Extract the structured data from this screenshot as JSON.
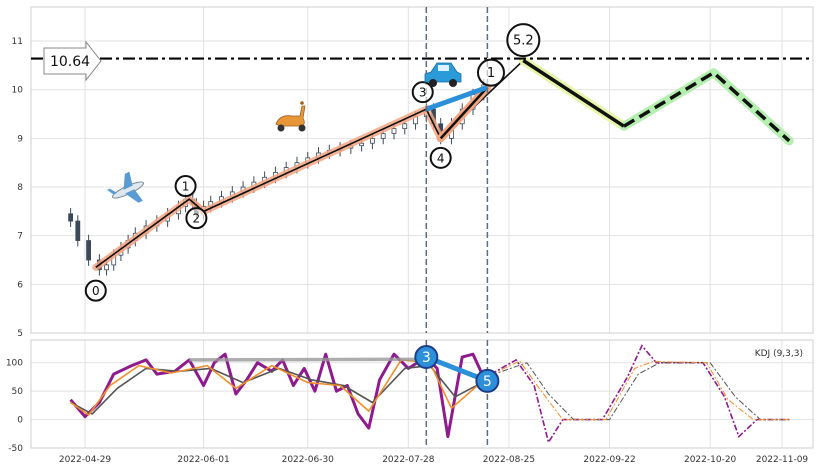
{
  "chart_data": {
    "type": "candlestick",
    "title": "",
    "price_panel": {
      "ylim": [
        5,
        11.7
      ],
      "yticks": [
        "5",
        "6",
        "7",
        "8",
        "9",
        "10",
        "11"
      ],
      "current_price_label": "10.64",
      "current_price_line": 10.64,
      "vlines": [
        "2022-08-02",
        "2022-08-19"
      ],
      "wave_labels": [
        "0",
        "1",
        "2",
        "3",
        "4",
        "1",
        "5.2"
      ],
      "emoji_markers": [
        "airplane",
        "scooter",
        "car"
      ],
      "close_series": [
        {
          "date": "2022-04-25",
          "value": 7.3
        },
        {
          "date": "2022-04-27",
          "value": 6.9
        },
        {
          "date": "2022-04-30",
          "value": 6.5
        },
        {
          "date": "2022-05-03",
          "value": 6.3
        },
        {
          "date": "2022-05-05",
          "value": 6.4
        },
        {
          "date": "2022-05-07",
          "value": 6.6
        },
        {
          "date": "2022-05-09",
          "value": 6.75
        },
        {
          "date": "2022-05-11",
          "value": 6.9
        },
        {
          "date": "2022-05-13",
          "value": 7.05
        },
        {
          "date": "2022-05-16",
          "value": 7.2
        },
        {
          "date": "2022-05-19",
          "value": 7.3
        },
        {
          "date": "2022-05-22",
          "value": 7.45
        },
        {
          "date": "2022-05-25",
          "value": 7.6
        },
        {
          "date": "2022-05-27",
          "value": 7.75
        },
        {
          "date": "2022-05-29",
          "value": 7.65
        },
        {
          "date": "2022-05-30",
          "value": 7.45
        },
        {
          "date": "2022-06-01",
          "value": 7.6
        },
        {
          "date": "2022-06-03",
          "value": 7.7
        },
        {
          "date": "2022-06-06",
          "value": 7.8
        },
        {
          "date": "2022-06-09",
          "value": 7.9
        },
        {
          "date": "2022-06-12",
          "value": 8.0
        },
        {
          "date": "2022-06-15",
          "value": 8.1
        },
        {
          "date": "2022-06-18",
          "value": 8.2
        },
        {
          "date": "2022-06-21",
          "value": 8.3
        },
        {
          "date": "2022-06-24",
          "value": 8.4
        },
        {
          "date": "2022-06-27",
          "value": 8.5
        },
        {
          "date": "2022-06-30",
          "value": 8.6
        },
        {
          "date": "2022-07-03",
          "value": 8.7
        },
        {
          "date": "2022-07-06",
          "value": 8.75
        },
        {
          "date": "2022-07-09",
          "value": 8.8
        },
        {
          "date": "2022-07-12",
          "value": 8.85
        },
        {
          "date": "2022-07-15",
          "value": 8.9
        },
        {
          "date": "2022-07-18",
          "value": 9.0
        },
        {
          "date": "2022-07-21",
          "value": 9.1
        },
        {
          "date": "2022-07-24",
          "value": 9.2
        },
        {
          "date": "2022-07-27",
          "value": 9.3
        },
        {
          "date": "2022-07-30",
          "value": 9.45
        },
        {
          "date": "2022-08-02",
          "value": 9.6
        },
        {
          "date": "2022-08-04",
          "value": 9.3
        },
        {
          "date": "2022-08-06",
          "value": 9.0
        },
        {
          "date": "2022-08-09",
          "value": 9.3
        },
        {
          "date": "2022-08-12",
          "value": 9.6
        },
        {
          "date": "2022-08-15",
          "value": 9.9
        },
        {
          "date": "2022-08-18",
          "value": 10.1
        }
      ],
      "wave_segments": [
        {
          "name": "primary",
          "points": [
            {
              "date": "2022-05-02",
              "value": 6.35
            },
            {
              "date": "2022-05-28",
              "value": 7.75
            },
            {
              "date": "2022-06-01",
              "value": 7.5
            },
            {
              "date": "2022-08-02",
              "value": 9.6
            },
            {
              "date": "2022-08-06",
              "value": 9.0
            },
            {
              "date": "2022-08-29",
              "value": 10.6
            }
          ]
        },
        {
          "name": "sub-wave",
          "points": [
            {
              "date": "2022-08-06",
              "value": 9.0
            },
            {
              "date": "2022-08-19",
              "value": 10.05
            }
          ]
        },
        {
          "name": "connector",
          "points": [
            {
              "date": "2022-08-02",
              "value": 9.6
            },
            {
              "date": "2022-08-19",
              "value": 10.05
            }
          ]
        }
      ],
      "projection": [
        {
          "date": "2022-08-29",
          "value": 10.6
        },
        {
          "date": "2022-09-26",
          "value": 9.25
        },
        {
          "date": "2022-10-21",
          "value": 10.35
        },
        {
          "date": "2022-11-11",
          "value": 8.95
        }
      ]
    },
    "kdj_panel": {
      "legend_label": "KDJ (9,3,3)",
      "ylim": [
        -50,
        140
      ],
      "yticks": [
        "-50",
        "0",
        "50",
        "100"
      ],
      "wave_labels": [
        "3",
        "5"
      ],
      "series": [
        {
          "name": "J",
          "values": [
            {
              "date": "2022-04-25",
              "value": 35
            },
            {
              "date": "2022-04-29",
              "value": 5
            },
            {
              "date": "2022-05-03",
              "value": 30
            },
            {
              "date": "2022-05-07",
              "value": 80
            },
            {
              "date": "2022-05-12",
              "value": 95
            },
            {
              "date": "2022-05-16",
              "value": 105
            },
            {
              "date": "2022-05-19",
              "value": 80
            },
            {
              "date": "2022-05-24",
              "value": 85
            },
            {
              "date": "2022-05-28",
              "value": 105
            },
            {
              "date": "2022-06-01",
              "value": 60
            },
            {
              "date": "2022-06-04",
              "value": 100
            },
            {
              "date": "2022-06-07",
              "value": 115
            },
            {
              "date": "2022-06-10",
              "value": 45
            },
            {
              "date": "2022-06-13",
              "value": 70
            },
            {
              "date": "2022-06-16",
              "value": 100
            },
            {
              "date": "2022-06-20",
              "value": 85
            },
            {
              "date": "2022-06-23",
              "value": 105
            },
            {
              "date": "2022-06-26",
              "value": 60
            },
            {
              "date": "2022-06-29",
              "value": 90
            },
            {
              "date": "2022-07-02",
              "value": 50
            },
            {
              "date": "2022-07-05",
              "value": 115
            },
            {
              "date": "2022-07-08",
              "value": 50
            },
            {
              "date": "2022-07-11",
              "value": 60
            },
            {
              "date": "2022-07-14",
              "value": 10
            },
            {
              "date": "2022-07-17",
              "value": -15
            },
            {
              "date": "2022-07-20",
              "value": 70
            },
            {
              "date": "2022-07-24",
              "value": 115
            },
            {
              "date": "2022-07-28",
              "value": 90
            },
            {
              "date": "2022-08-02",
              "value": 110
            },
            {
              "date": "2022-08-05",
              "value": 90
            },
            {
              "date": "2022-08-08",
              "value": -30
            },
            {
              "date": "2022-08-12",
              "value": 110
            },
            {
              "date": "2022-08-15",
              "value": 115
            },
            {
              "date": "2022-08-19",
              "value": 60
            }
          ]
        },
        {
          "name": "D",
          "values": [
            {
              "date": "2022-04-25",
              "value": 30
            },
            {
              "date": "2022-05-01",
              "value": 10
            },
            {
              "date": "2022-05-08",
              "value": 55
            },
            {
              "date": "2022-05-16",
              "value": 90
            },
            {
              "date": "2022-05-25",
              "value": 85
            },
            {
              "date": "2022-06-03",
              "value": 90
            },
            {
              "date": "2022-06-12",
              "value": 65
            },
            {
              "date": "2022-06-22",
              "value": 90
            },
            {
              "date": "2022-07-01",
              "value": 70
            },
            {
              "date": "2022-07-10",
              "value": 60
            },
            {
              "date": "2022-07-18",
              "value": 30
            },
            {
              "date": "2022-07-27",
              "value": 90
            },
            {
              "date": "2022-08-03",
              "value": 95
            },
            {
              "date": "2022-08-10",
              "value": 40
            },
            {
              "date": "2022-08-19",
              "value": 70
            }
          ]
        },
        {
          "name": "K",
          "values": [
            {
              "date": "2022-04-25",
              "value": 30
            },
            {
              "date": "2022-04-30",
              "value": 8
            },
            {
              "date": "2022-05-06",
              "value": 60
            },
            {
              "date": "2022-05-14",
              "value": 95
            },
            {
              "date": "2022-05-23",
              "value": 82
            },
            {
              "date": "2022-06-02",
              "value": 95
            },
            {
              "date": "2022-06-10",
              "value": 55
            },
            {
              "date": "2022-06-20",
              "value": 95
            },
            {
              "date": "2022-06-30",
              "value": 65
            },
            {
              "date": "2022-07-09",
              "value": 60
            },
            {
              "date": "2022-07-17",
              "value": 15
            },
            {
              "date": "2022-07-26",
              "value": 105
            },
            {
              "date": "2022-08-03",
              "value": 100
            },
            {
              "date": "2022-08-09",
              "value": 20
            },
            {
              "date": "2022-08-19",
              "value": 75
            }
          ]
        }
      ],
      "projection": [
        {
          "name": "J",
          "values": [
            {
              "date": "2022-08-20",
              "value": 80
            },
            {
              "date": "2022-08-27",
              "value": 105
            },
            {
              "date": "2022-09-01",
              "value": 60
            },
            {
              "date": "2022-09-05",
              "value": -40
            },
            {
              "date": "2022-09-09",
              "value": 0
            },
            {
              "date": "2022-09-20",
              "value": 0
            },
            {
              "date": "2022-09-27",
              "value": 75
            },
            {
              "date": "2022-10-01",
              "value": 130
            },
            {
              "date": "2022-10-05",
              "value": 100
            },
            {
              "date": "2022-10-18",
              "value": 100
            },
            {
              "date": "2022-10-24",
              "value": 40
            },
            {
              "date": "2022-10-28",
              "value": -30
            },
            {
              "date": "2022-11-02",
              "value": 0
            },
            {
              "date": "2022-11-11",
              "value": 0
            }
          ]
        },
        {
          "name": "D",
          "values": [
            {
              "date": "2022-08-20",
              "value": 78
            },
            {
              "date": "2022-08-30",
              "value": 100
            },
            {
              "date": "2022-09-05",
              "value": 45
            },
            {
              "date": "2022-09-12",
              "value": 0
            },
            {
              "date": "2022-09-22",
              "value": 0
            },
            {
              "date": "2022-09-30",
              "value": 80
            },
            {
              "date": "2022-10-06",
              "value": 100
            },
            {
              "date": "2022-10-20",
              "value": 100
            },
            {
              "date": "2022-10-27",
              "value": 40
            },
            {
              "date": "2022-11-03",
              "value": 0
            },
            {
              "date": "2022-11-11",
              "value": 0
            }
          ]
        },
        {
          "name": "K",
          "values": [
            {
              "date": "2022-08-20",
              "value": 79
            },
            {
              "date": "2022-08-28",
              "value": 103
            },
            {
              "date": "2022-09-03",
              "value": 50
            },
            {
              "date": "2022-09-09",
              "value": 0
            },
            {
              "date": "2022-09-21",
              "value": 0
            },
            {
              "date": "2022-09-29",
              "value": 90
            },
            {
              "date": "2022-10-04",
              "value": 102
            },
            {
              "date": "2022-10-19",
              "value": 100
            },
            {
              "date": "2022-10-25",
              "value": 35
            },
            {
              "date": "2022-11-01",
              "value": 0
            },
            {
              "date": "2022-11-11",
              "value": 0
            }
          ]
        }
      ]
    },
    "x_tick_labels": [
      "2022-04-29",
      "2022-06-01",
      "2022-06-30",
      "2022-07-28",
      "2022-08-25",
      "2022-09-22",
      "2022-10-20",
      "2022-11-09"
    ]
  }
}
